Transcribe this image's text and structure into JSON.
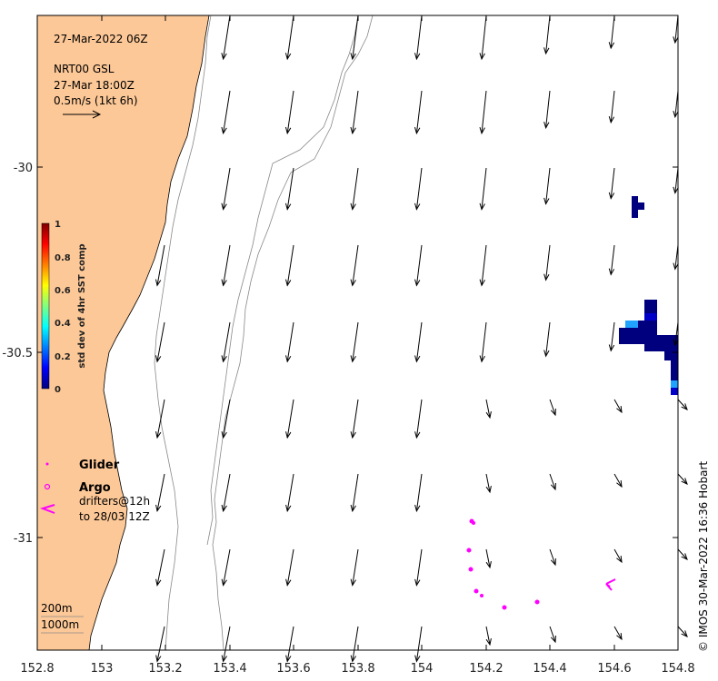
{
  "header": {
    "datetime": "27-Mar-2022 06Z",
    "product": "NRT00 GSL",
    "product_time": "27-Mar 18:00Z",
    "scale_label": "0.5m/s (1kt 6h)"
  },
  "colorbar": {
    "title": "std dev of 4hr SST comp",
    "ticks": [
      "0",
      "0.2",
      "0.4",
      "0.6",
      "0.8",
      "1"
    ],
    "colors": [
      "#00007f",
      "#0000ff",
      "#007fff",
      "#00ffff",
      "#7fff7f",
      "#ffff00",
      "#ff7f00",
      "#ff0000",
      "#7f0000"
    ]
  },
  "axes": {
    "x_ticks": [
      "152.8",
      "153",
      "153.2",
      "153.4",
      "153.6",
      "153.8",
      "154",
      "154.2",
      "154.4",
      "154.6",
      "154.8"
    ],
    "y_ticks": [
      "-30",
      "-30.5",
      "-31"
    ]
  },
  "legend": {
    "glider": "Glider",
    "argo": "Argo",
    "drifters_line1": "drifters@12h",
    "drifters_line2": "to 28/03 12Z"
  },
  "isobaths": {
    "shallow": "200m",
    "deep": "1000m"
  },
  "credit": "© IMOS 30-Mar-2022 16:36 Hobart",
  "colors": {
    "land": "#fdc897",
    "sst_dark": "#00007f",
    "sst_mid": "#0000c8",
    "sst_light": "#1fa3ff",
    "drifter": "#ff00ff"
  }
}
